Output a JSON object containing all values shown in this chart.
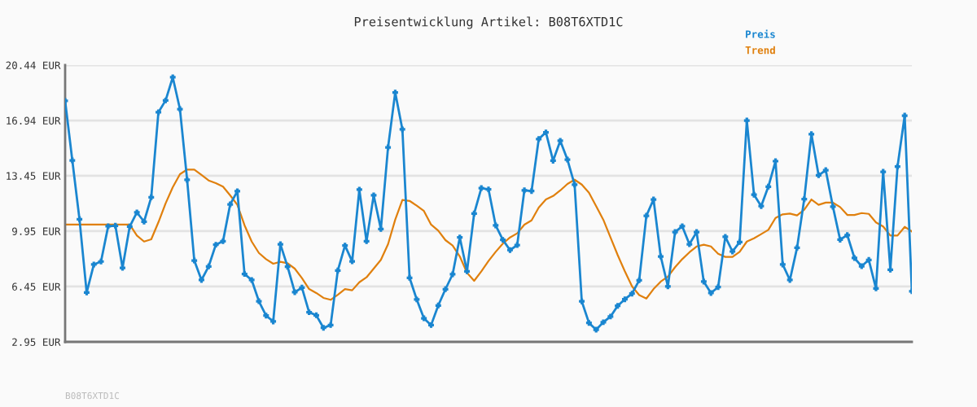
{
  "chart_data": {
    "type": "line",
    "title": "Preisentwicklung Artikel: B08T6XTD1C",
    "categories": [
      null,
      null,
      null,
      null,
      null,
      null,
      null,
      null,
      null,
      null,
      null,
      null,
      null,
      null,
      null,
      null,
      null,
      null,
      null,
      null,
      null,
      null,
      null,
      null,
      null,
      null,
      null,
      null,
      null,
      null,
      null,
      null,
      null,
      null,
      null,
      null,
      null,
      null,
      null,
      null,
      null,
      null,
      null,
      null,
      null,
      null,
      null,
      null,
      null,
      null,
      null,
      null,
      null,
      null,
      null,
      null,
      null,
      null,
      null,
      null,
      null,
      null,
      null,
      null,
      null,
      null,
      null,
      null,
      null,
      null,
      null,
      null,
      null,
      null,
      null,
      null,
      null,
      null,
      null,
      null,
      null,
      null,
      null,
      null,
      null,
      null,
      null,
      null,
      null,
      null,
      null,
      null,
      null,
      null,
      null,
      null,
      null,
      null,
      null,
      null,
      null,
      null,
      null,
      null,
      null,
      null,
      null,
      null,
      null,
      null,
      null,
      null,
      null,
      null,
      null,
      null,
      null,
      null,
      null
    ],
    "series": [
      {
        "name": "Preis",
        "color": "#1a86d0",
        "marker": "cross",
        "values": [
          18.18,
          14.42,
          10.7,
          6.07,
          7.84,
          8.03,
          10.26,
          10.29,
          7.63,
          10.24,
          11.13,
          10.55,
          12.09,
          17.46,
          18.21,
          19.67,
          17.66,
          13.19,
          8.09,
          6.86,
          7.72,
          9.09,
          9.31,
          11.64,
          12.47,
          7.24,
          6.86,
          5.52,
          4.61,
          4.24,
          9.12,
          7.7,
          6.09,
          6.38,
          4.82,
          4.63,
          3.84,
          4.01,
          7.46,
          9.04,
          8.04,
          12.57,
          9.31,
          12.21,
          10.08,
          15.24,
          18.71,
          16.38,
          7.0,
          5.63,
          4.44,
          4.01,
          5.25,
          6.28,
          7.22,
          9.55,
          7.41,
          11.06,
          12.67,
          12.59,
          10.31,
          9.4,
          8.75,
          9.07,
          12.53,
          12.48,
          15.77,
          16.19,
          14.4,
          15.66,
          14.47,
          12.89,
          5.51,
          4.15,
          3.72,
          4.19,
          4.55,
          5.23,
          5.64,
          6.0,
          6.84,
          10.92,
          11.95,
          8.35,
          6.46,
          9.89,
          10.26,
          9.12,
          9.89,
          6.76,
          6.04,
          6.41,
          9.59,
          8.66,
          9.26,
          16.94,
          12.25,
          11.53,
          12.76,
          14.37,
          7.84,
          6.86,
          8.9,
          11.97,
          16.08,
          13.48,
          13.8,
          11.49,
          9.41,
          9.7,
          8.25,
          7.73,
          8.13,
          6.33,
          13.7,
          7.51,
          14.03,
          17.25,
          6.15
        ]
      },
      {
        "name": "Trend",
        "color": "#e0800e",
        "marker": "none",
        "values": [
          10.36,
          10.36,
          10.36,
          10.36,
          10.36,
          10.36,
          10.36,
          10.36,
          10.36,
          10.36,
          9.67,
          9.29,
          9.43,
          10.51,
          11.7,
          12.72,
          13.55,
          13.84,
          13.84,
          13.5,
          13.15,
          12.98,
          12.76,
          12.21,
          11.61,
          10.32,
          9.29,
          8.57,
          8.18,
          7.89,
          8.01,
          7.92,
          7.58,
          6.98,
          6.29,
          6.04,
          5.73,
          5.61,
          5.93,
          6.29,
          6.21,
          6.72,
          7.03,
          7.58,
          8.13,
          9.12,
          10.67,
          11.92,
          11.86,
          11.56,
          11.22,
          10.36,
          9.98,
          9.38,
          9.04,
          8.35,
          7.32,
          6.81,
          7.41,
          8.06,
          8.64,
          9.16,
          9.55,
          9.81,
          10.36,
          10.63,
          11.44,
          11.95,
          12.17,
          12.52,
          12.93,
          13.2,
          12.89,
          12.38,
          11.53,
          10.67,
          9.55,
          8.44,
          7.41,
          6.46,
          5.91,
          5.69,
          6.29,
          6.76,
          7.07,
          7.67,
          8.18,
          8.61,
          8.98,
          9.09,
          8.98,
          8.52,
          8.32,
          8.32,
          8.64,
          9.29,
          9.5,
          9.76,
          10.03,
          10.78,
          11.01,
          11.06,
          10.94,
          11.3,
          11.95,
          11.61,
          11.75,
          11.75,
          11.47,
          10.97,
          10.97,
          11.09,
          11.04,
          10.5,
          10.24,
          9.67,
          9.67,
          10.22,
          9.93
        ]
      }
    ],
    "ylim": [
      2.95,
      20.44
    ],
    "yticks": [
      {
        "value": 2.95,
        "label": "2.95 EUR"
      },
      {
        "value": 6.45,
        "label": "6.45 EUR"
      },
      {
        "value": 9.95,
        "label": "9.95 EUR"
      },
      {
        "value": 13.45,
        "label": "13.45 EUR"
      },
      {
        "value": 16.94,
        "label": "16.94 EUR"
      },
      {
        "value": 20.44,
        "label": "20.44 EUR"
      }
    ],
    "grid": "y",
    "legend": "top right",
    "tick_labels": "y",
    "annotations": [
      "B08T6XTD1C"
    ]
  }
}
